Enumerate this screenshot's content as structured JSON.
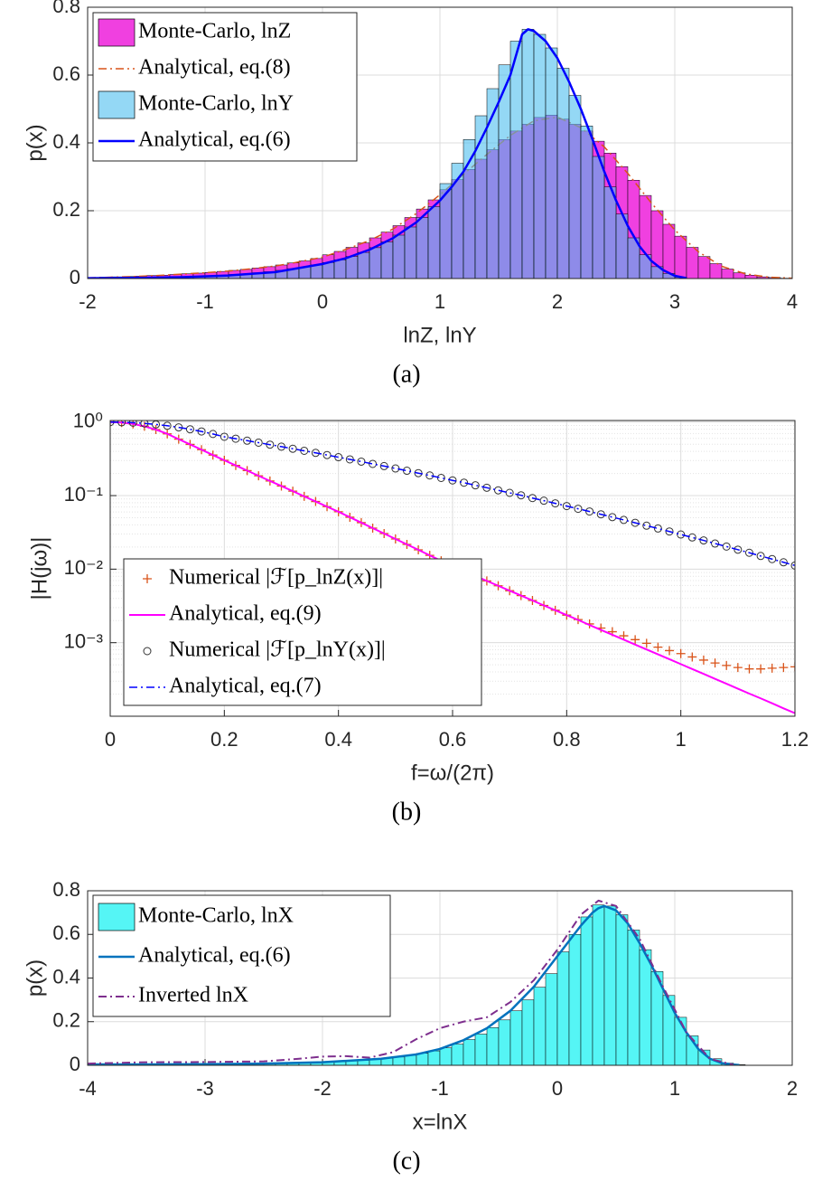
{
  "chart_data": [
    {
      "type": "histogram",
      "xlabel": "lnZ, lnY",
      "ylabel": "p(x)",
      "caption": "(a)",
      "xlim": [
        -2,
        4
      ],
      "ylim": [
        0,
        0.8
      ],
      "xticks": [
        -2,
        -1,
        0,
        1,
        2,
        3,
        4
      ],
      "yticks": [
        0,
        0.2,
        0.4,
        0.6,
        0.8
      ],
      "grid": true,
      "series": [
        {
          "name": "Monte-Carlo, lnZ",
          "type": "histogram",
          "color": "#f040e0",
          "opacity": 1,
          "bins": [
            -2.0,
            -1.9,
            -1.8,
            -1.7,
            -1.6,
            -1.5,
            -1.4,
            -1.3,
            -1.2,
            -1.1,
            -1.0,
            -0.9,
            -0.8,
            -0.7,
            -0.6,
            -0.5,
            -0.4,
            -0.3,
            -0.2,
            -0.1,
            0.0,
            0.1,
            0.2,
            0.3,
            0.4,
            0.5,
            0.6,
            0.7,
            0.8,
            0.9,
            1.0,
            1.1,
            1.2,
            1.3,
            1.4,
            1.5,
            1.6,
            1.7,
            1.8,
            1.9,
            2.0,
            2.1,
            2.2,
            2.3,
            2.4,
            2.5,
            2.6,
            2.7,
            2.8,
            2.9,
            3.0,
            3.1,
            3.2,
            3.3,
            3.4,
            3.5,
            3.6,
            3.7,
            3.8,
            3.9,
            4.0
          ],
          "values": [
            0.003,
            0.004,
            0.005,
            0.006,
            0.007,
            0.009,
            0.01,
            0.012,
            0.014,
            0.016,
            0.018,
            0.021,
            0.024,
            0.027,
            0.031,
            0.035,
            0.04,
            0.046,
            0.052,
            0.059,
            0.07,
            0.08,
            0.092,
            0.105,
            0.12,
            0.137,
            0.156,
            0.18,
            0.205,
            0.232,
            0.262,
            0.292,
            0.322,
            0.352,
            0.38,
            0.41,
            0.435,
            0.455,
            0.475,
            0.482,
            0.47,
            0.455,
            0.435,
            0.405,
            0.37,
            0.33,
            0.29,
            0.245,
            0.2,
            0.16,
            0.125,
            0.092,
            0.065,
            0.044,
            0.028,
            0.017,
            0.01,
            0.005,
            0.003,
            0.001
          ]
        },
        {
          "name": "Analytical, eq.(8)",
          "type": "line",
          "color": "#d95319",
          "linestyle": "-.",
          "width": 1.5,
          "x": [
            -2,
            -1.8,
            -1.6,
            -1.4,
            -1.2,
            -1,
            -0.8,
            -0.6,
            -0.4,
            -0.2,
            0,
            0.2,
            0.4,
            0.6,
            0.8,
            1,
            1.2,
            1.4,
            1.6,
            1.8,
            2,
            2.2,
            2.4,
            2.6,
            2.8,
            3,
            3.2,
            3.4,
            3.6,
            3.8,
            4
          ],
          "values": [
            0.002,
            0.004,
            0.006,
            0.009,
            0.013,
            0.017,
            0.022,
            0.029,
            0.037,
            0.049,
            0.063,
            0.086,
            0.112,
            0.146,
            0.192,
            0.247,
            0.307,
            0.366,
            0.422,
            0.465,
            0.476,
            0.445,
            0.388,
            0.31,
            0.223,
            0.143,
            0.079,
            0.036,
            0.014,
            0.004,
            0.001
          ]
        },
        {
          "name": "Monte-Carlo, lnY",
          "type": "histogram",
          "color": "#4dbeee",
          "opacity": 0.6,
          "bins": [
            -2.0,
            -1.9,
            -1.8,
            -1.7,
            -1.6,
            -1.5,
            -1.4,
            -1.3,
            -1.2,
            -1.1,
            -1.0,
            -0.9,
            -0.8,
            -0.7,
            -0.6,
            -0.5,
            -0.4,
            -0.3,
            -0.2,
            -0.1,
            0.0,
            0.1,
            0.2,
            0.3,
            0.4,
            0.5,
            0.6,
            0.7,
            0.8,
            0.9,
            1.0,
            1.1,
            1.2,
            1.3,
            1.4,
            1.5,
            1.6,
            1.7,
            1.8,
            1.9,
            2.0,
            2.1,
            2.2,
            2.3,
            2.4,
            2.5,
            2.6,
            2.7,
            2.8,
            2.9,
            3.0,
            3.1
          ],
          "values": [
            0.001,
            0.001,
            0.002,
            0.002,
            0.003,
            0.003,
            0.004,
            0.005,
            0.006,
            0.007,
            0.008,
            0.01,
            0.012,
            0.014,
            0.017,
            0.02,
            0.024,
            0.029,
            0.034,
            0.04,
            0.047,
            0.055,
            0.065,
            0.077,
            0.091,
            0.108,
            0.128,
            0.152,
            0.18,
            0.212,
            0.28,
            0.34,
            0.41,
            0.48,
            0.56,
            0.63,
            0.7,
            0.735,
            0.72,
            0.68,
            0.62,
            0.54,
            0.45,
            0.36,
            0.27,
            0.19,
            0.12,
            0.07,
            0.035,
            0.015,
            0.004
          ]
        },
        {
          "name": "Analytical, eq.(6)",
          "type": "line",
          "color": "#0000ff",
          "linestyle": "-",
          "width": 2.5,
          "x": [
            -2,
            -1.6,
            -1.2,
            -0.8,
            -0.4,
            0,
            0.2,
            0.4,
            0.6,
            0.8,
            1,
            1.1,
            1.2,
            1.3,
            1.4,
            1.5,
            1.6,
            1.7,
            1.75,
            1.8,
            1.9,
            2,
            2.1,
            2.2,
            2.3,
            2.4,
            2.5,
            2.6,
            2.7,
            2.8,
            2.9,
            3,
            3.1
          ],
          "values": [
            0.001,
            0.002,
            0.004,
            0.009,
            0.019,
            0.043,
            0.06,
            0.085,
            0.119,
            0.166,
            0.23,
            0.27,
            0.315,
            0.375,
            0.445,
            0.52,
            0.6,
            0.72,
            0.735,
            0.73,
            0.7,
            0.65,
            0.58,
            0.5,
            0.41,
            0.315,
            0.23,
            0.155,
            0.095,
            0.052,
            0.025,
            0.008,
            0.001
          ]
        }
      ]
    },
    {
      "type": "line",
      "xlabel": "f=ω/(2π)",
      "ylabel": "|H(jω)|",
      "caption": "(b)",
      "yscale": "log",
      "xlim": [
        0,
        1.2
      ],
      "ylim": [
        0.0001,
        1.05
      ],
      "grid": true,
      "minor_grid": true,
      "xticks": [
        0,
        0.2,
        0.4,
        0.6,
        0.8,
        1,
        1.2
      ],
      "yticks": [
        {
          "value": 0.001,
          "label": "10⁻³"
        },
        {
          "value": 0.01,
          "label": "10⁻²"
        },
        {
          "value": 0.1,
          "label": "10⁻¹"
        },
        {
          "value": 1,
          "label": "10⁰"
        }
      ],
      "x": [
        0,
        0.02,
        0.04,
        0.06,
        0.08,
        0.1,
        0.12,
        0.14,
        0.16,
        0.18,
        0.2,
        0.22,
        0.24,
        0.26,
        0.28,
        0.3,
        0.32,
        0.34,
        0.36,
        0.38,
        0.4,
        0.42,
        0.44,
        0.46,
        0.48,
        0.5,
        0.52,
        0.54,
        0.56,
        0.58,
        0.6,
        0.62,
        0.64,
        0.66,
        0.68,
        0.7,
        0.72,
        0.74,
        0.76,
        0.78,
        0.8,
        0.82,
        0.84,
        0.86,
        0.88,
        0.9,
        0.92,
        0.94,
        0.96,
        0.98,
        1.0,
        1.02,
        1.04,
        1.06,
        1.08,
        1.1,
        1.12,
        1.14,
        1.16,
        1.18,
        1.2
      ],
      "series": [
        {
          "name": "Numerical |ℱ[p_lnZ(x)]|",
          "type": "scatter",
          "marker": "+",
          "color": "#d95319",
          "values": [
            1,
            0.985,
            0.943,
            0.876,
            0.79,
            0.692,
            0.586,
            0.497,
            0.421,
            0.356,
            0.302,
            0.257,
            0.219,
            0.186,
            0.158,
            0.135,
            0.115,
            0.0977,
            0.0832,
            0.0708,
            0.0603,
            0.0508,
            0.0429,
            0.0361,
            0.0305,
            0.0257,
            0.0217,
            0.0183,
            0.0154,
            0.013,
            0.011,
            0.0094,
            0.00807,
            0.00692,
            0.00594,
            0.00509,
            0.00437,
            0.00375,
            0.00321,
            0.00276,
            0.00237,
            0.00206,
            0.0018,
            0.00158,
            0.00141,
            0.00124,
            0.0011,
            0.00098,
            0.00087,
            0.00078,
            0.00071,
            0.00064,
            0.00058,
            0.00053,
            0.00049,
            0.00046,
            0.00044,
            0.00044,
            0.00045,
            0.00046,
            0.00047
          ]
        },
        {
          "name": "Analytical, eq.(9)",
          "type": "line",
          "color": "#ff00ff",
          "linestyle": "-",
          "width": 2,
          "values": [
            1,
            0.985,
            0.943,
            0.876,
            0.79,
            0.692,
            0.586,
            0.497,
            0.421,
            0.356,
            0.302,
            0.257,
            0.219,
            0.186,
            0.158,
            0.135,
            0.115,
            0.0977,
            0.0832,
            0.0708,
            0.0603,
            0.0508,
            0.0429,
            0.0361,
            0.0305,
            0.0257,
            0.0217,
            0.0183,
            0.0154,
            0.013,
            0.011,
            0.0094,
            0.00807,
            0.00692,
            0.00594,
            0.00509,
            0.00437,
            0.00375,
            0.00321,
            0.00276,
            0.00237,
            0.00204,
            0.00174,
            0.00149,
            0.00128,
            0.0011,
            0.000942,
            0.000809,
            0.000694,
            0.000596,
            0.000511,
            0.000438,
            0.000376,
            0.000322,
            0.000277,
            0.000237,
            0.000203,
            0.000175,
            0.00015,
            0.000128,
            0.00011
          ]
        },
        {
          "name": "Numerical |ℱ[p_lnY(x)]|",
          "type": "scatter",
          "marker": "o",
          "color": "#333333",
          "values": [
            1,
            0.995,
            0.982,
            0.959,
            0.929,
            0.891,
            0.847,
            0.798,
            0.745,
            0.689,
            0.631,
            0.594,
            0.559,
            0.525,
            0.493,
            0.463,
            0.434,
            0.407,
            0.381,
            0.356,
            0.333,
            0.311,
            0.29,
            0.27,
            0.252,
            0.234,
            0.218,
            0.202,
            0.188,
            0.174,
            0.161,
            0.15,
            0.138,
            0.128,
            0.118,
            0.109,
            0.101,
            0.0927,
            0.0853,
            0.0785,
            0.0721,
            0.0662,
            0.0608,
            0.0557,
            0.051,
            0.0467,
            0.0427,
            0.039,
            0.0357,
            0.0325,
            0.0296,
            0.027,
            0.0246,
            0.0223,
            0.0203,
            0.0184,
            0.0167,
            0.0151,
            0.0137,
            0.0124,
            0.0112
          ]
        },
        {
          "name": "Analytical, eq.(7)",
          "type": "line",
          "color": "#0000ff",
          "linestyle": "-.",
          "width": 1.5,
          "values": [
            1,
            0.995,
            0.982,
            0.959,
            0.929,
            0.891,
            0.847,
            0.798,
            0.745,
            0.689,
            0.631,
            0.594,
            0.559,
            0.525,
            0.493,
            0.463,
            0.434,
            0.407,
            0.381,
            0.356,
            0.333,
            0.311,
            0.29,
            0.27,
            0.252,
            0.234,
            0.218,
            0.202,
            0.188,
            0.174,
            0.161,
            0.15,
            0.138,
            0.128,
            0.118,
            0.109,
            0.101,
            0.0927,
            0.0853,
            0.0785,
            0.0721,
            0.0662,
            0.0608,
            0.0557,
            0.051,
            0.0467,
            0.0427,
            0.039,
            0.0357,
            0.0325,
            0.0296,
            0.027,
            0.0246,
            0.0223,
            0.0203,
            0.0184,
            0.0167,
            0.0151,
            0.0137,
            0.0124,
            0.0112
          ]
        }
      ]
    },
    {
      "type": "histogram",
      "xlabel": "x=lnX",
      "ylabel": "p(x)",
      "caption": "(c)",
      "xlim": [
        -4,
        2
      ],
      "ylim": [
        0,
        0.8
      ],
      "xticks": [
        -4,
        -3,
        -2,
        -1,
        0,
        1,
        2
      ],
      "yticks": [
        0,
        0.2,
        0.4,
        0.6,
        0.8
      ],
      "grid": true,
      "series": [
        {
          "name": "Monte-Carlo, lnX",
          "type": "histogram",
          "color": "#55f5f5",
          "opacity": 1,
          "bins": [
            -4.0,
            -3.9,
            -3.8,
            -3.7,
            -3.6,
            -3.5,
            -3.4,
            -3.3,
            -3.2,
            -3.1,
            -3.0,
            -2.9,
            -2.8,
            -2.7,
            -2.6,
            -2.5,
            -2.4,
            -2.3,
            -2.2,
            -2.1,
            -2.0,
            -1.9,
            -1.8,
            -1.7,
            -1.6,
            -1.5,
            -1.4,
            -1.3,
            -1.2,
            -1.1,
            -1.0,
            -0.9,
            -0.8,
            -0.7,
            -0.6,
            -0.5,
            -0.4,
            -0.3,
            -0.2,
            -0.1,
            0.0,
            0.1,
            0.2,
            0.3,
            0.4,
            0.5,
            0.6,
            0.7,
            0.8,
            0.9,
            1.0,
            1.1,
            1.2,
            1.3,
            1.4,
            1.5,
            1.6
          ],
          "values": [
            0.004,
            0.004,
            0.004,
            0.004,
            0.004,
            0.004,
            0.004,
            0.005,
            0.005,
            0.005,
            0.005,
            0.006,
            0.006,
            0.007,
            0.007,
            0.008,
            0.009,
            0.01,
            0.011,
            0.013,
            0.015,
            0.017,
            0.02,
            0.023,
            0.027,
            0.032,
            0.038,
            0.046,
            0.055,
            0.066,
            0.08,
            0.097,
            0.118,
            0.143,
            0.173,
            0.208,
            0.25,
            0.3,
            0.358,
            0.42,
            0.52,
            0.6,
            0.68,
            0.735,
            0.73,
            0.69,
            0.62,
            0.53,
            0.43,
            0.32,
            0.22,
            0.135,
            0.07,
            0.03,
            0.01,
            0.003
          ]
        },
        {
          "name": "Analytical, eq.(6)",
          "type": "line",
          "color": "#0072bd",
          "linestyle": "-",
          "width": 2.5,
          "x": [
            -4,
            -3.5,
            -3,
            -2.5,
            -2,
            -1.5,
            -1.2,
            -1,
            -0.8,
            -0.6,
            -0.4,
            -0.2,
            0,
            0.1,
            0.2,
            0.3,
            0.35,
            0.4,
            0.5,
            0.6,
            0.7,
            0.8,
            0.9,
            1,
            1.1,
            1.2,
            1.3,
            1.4,
            1.5,
            1.55
          ],
          "values": [
            0.004,
            0.004,
            0.005,
            0.008,
            0.014,
            0.03,
            0.05,
            0.075,
            0.115,
            0.17,
            0.25,
            0.36,
            0.5,
            0.57,
            0.64,
            0.7,
            0.72,
            0.73,
            0.71,
            0.65,
            0.56,
            0.46,
            0.35,
            0.24,
            0.15,
            0.075,
            0.03,
            0.01,
            0.003,
            0.001
          ]
        },
        {
          "name": "Inverted lnX",
          "type": "line",
          "color": "#7e2f8e",
          "linestyle": "-.",
          "width": 2,
          "x": [
            -4,
            -3.5,
            -3,
            -2.5,
            -2.2,
            -2,
            -1.8,
            -1.6,
            -1.4,
            -1.2,
            -1,
            -0.8,
            -0.6,
            -0.4,
            -0.2,
            0,
            0.2,
            0.35,
            0.5,
            0.7,
            0.9,
            1.1,
            1.3,
            1.5
          ],
          "values": [
            0.008,
            0.014,
            0.015,
            0.018,
            0.03,
            0.04,
            0.042,
            0.035,
            0.06,
            0.12,
            0.17,
            0.2,
            0.22,
            0.29,
            0.39,
            0.53,
            0.69,
            0.755,
            0.73,
            0.58,
            0.36,
            0.15,
            0.03,
            0.002
          ]
        }
      ]
    }
  ]
}
